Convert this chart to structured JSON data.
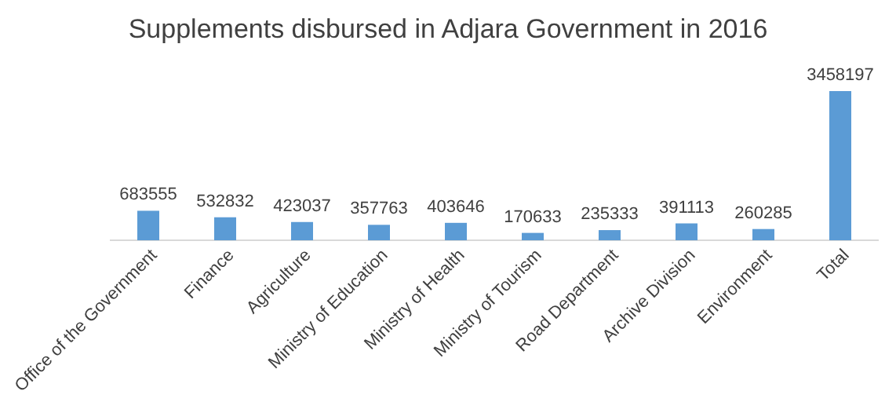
{
  "chart_data": {
    "type": "bar",
    "title": "Supplements disbursed in Adjara Government in 2016",
    "categories": [
      "Office of the Government",
      "Finance",
      "Agriculture",
      "Ministry of Education",
      "Ministry of Health",
      "Ministry of Tourism",
      "Road Department",
      "Archive Division",
      "Environment",
      "Total"
    ],
    "values": [
      683555,
      532832,
      423037,
      357763,
      403646,
      170633,
      235333,
      391113,
      260285,
      3458197
    ],
    "color": "#5b9bd5",
    "data_labels": true
  }
}
